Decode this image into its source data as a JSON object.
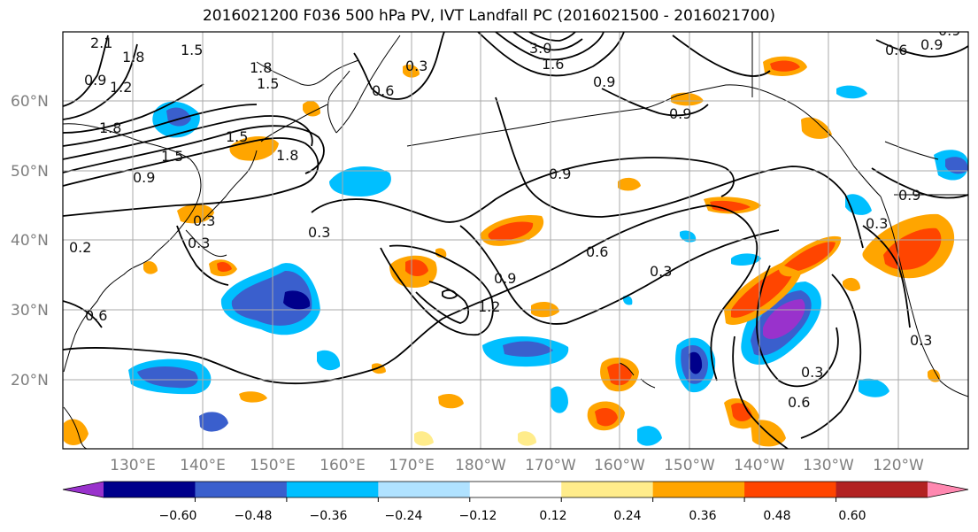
{
  "title": "2016021200 F036 500 hPa PV, IVT Landfall PC (2016021500 - 2016021700)",
  "map": {
    "lon_labels": [
      "130°E",
      "140°E",
      "150°E",
      "160°E",
      "170°E",
      "180°W",
      "170°W",
      "160°W",
      "150°W",
      "140°W",
      "130°W",
      "120°W"
    ],
    "lat_labels": [
      "60°N",
      "50°N",
      "40°N",
      "30°N",
      "20°N"
    ]
  },
  "contour_labels": [
    "2.1",
    "1.8",
    "1.5",
    "1.2",
    "1.5",
    "1.8",
    "0.9",
    "1.8",
    "1.5",
    "1.5",
    "1.8",
    "0.9",
    "0.3",
    "0.6",
    "0.3",
    "0.6",
    "0.3",
    "3.0",
    "1.6",
    "0.9",
    "0.9",
    "0.9",
    "0.6",
    "0.3",
    "0.9",
    "1.2",
    "0.9",
    "0.6",
    "0.3",
    "0.3",
    "0.6",
    "0.3",
    "0.9",
    "0.3",
    "0.2",
    "0.9"
  ],
  "colorbar": {
    "ticks": [
      "−0.60",
      "−0.48",
      "−0.36",
      "−0.24",
      "−0.12",
      "0.12",
      "0.24",
      "0.36",
      "0.48",
      "0.60"
    ],
    "colors": [
      "#9932cc",
      "#00008b",
      "#3a5fcd",
      "#00bfff",
      "#b0e2ff",
      "#ffffff",
      "#ffec8b",
      "#ffa500",
      "#ff4500",
      "#b22222",
      "#ff88b0"
    ]
  },
  "colors": {
    "ocean": "#ffffff",
    "land_outline": "#000000",
    "grid": "#aaaaaa"
  }
}
